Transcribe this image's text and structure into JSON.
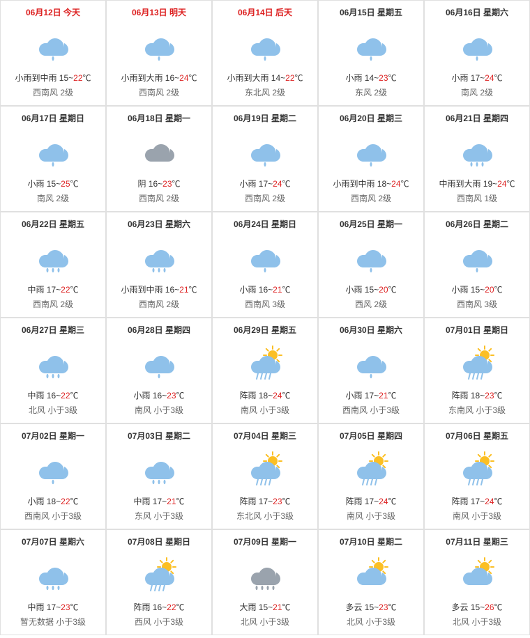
{
  "colors": {
    "cloud_blue": "#8fc1ea",
    "cloud_gray": "#9aa3ad",
    "sun": "#fbbf24",
    "highlight_red": "#d22222",
    "text_dark": "#333333",
    "text_muted": "#666666",
    "border": "#e0e0e0"
  },
  "days": [
    {
      "date": "06月12日",
      "dow": "今天",
      "hl": true,
      "icon": "light_rain",
      "cond": "小雨到中雨",
      "lo": "15",
      "hi": "22",
      "wind": "西南风 2级"
    },
    {
      "date": "06月13日",
      "dow": "明天",
      "hl": true,
      "icon": "light_rain",
      "cond": "小雨到大雨",
      "lo": "16",
      "hi": "24",
      "wind": "西南风 2级"
    },
    {
      "date": "06月14日",
      "dow": "后天",
      "hl": true,
      "icon": "light_rain",
      "cond": "小雨到大雨",
      "lo": "14",
      "hi": "22",
      "wind": "东北风 2级"
    },
    {
      "date": "06月15日",
      "dow": "星期五",
      "hl": false,
      "icon": "light_rain",
      "cond": "小雨",
      "lo": "14",
      "hi": "23",
      "wind": "东风 2级"
    },
    {
      "date": "06月16日",
      "dow": "星期六",
      "hl": false,
      "icon": "light_rain",
      "cond": "小雨",
      "lo": "17",
      "hi": "24",
      "wind": "南风 2级"
    },
    {
      "date": "06月17日",
      "dow": "星期日",
      "hl": false,
      "icon": "light_rain",
      "cond": "小雨",
      "lo": "15",
      "hi": "25",
      "wind": "南风 2级"
    },
    {
      "date": "06月18日",
      "dow": "星期一",
      "hl": false,
      "icon": "overcast",
      "cond": "阴",
      "lo": "16",
      "hi": "23",
      "wind": "西南风 2级"
    },
    {
      "date": "06月19日",
      "dow": "星期二",
      "hl": false,
      "icon": "light_rain",
      "cond": "小雨",
      "lo": "17",
      "hi": "24",
      "wind": "西南风 2级"
    },
    {
      "date": "06月20日",
      "dow": "星期三",
      "hl": false,
      "icon": "light_rain",
      "cond": "小雨到中雨",
      "lo": "18",
      "hi": "24",
      "wind": "西南风 2级"
    },
    {
      "date": "06月21日",
      "dow": "星期四",
      "hl": false,
      "icon": "moderate_rain",
      "cond": "中雨到大雨",
      "lo": "19",
      "hi": "24",
      "wind": "西南风 1级"
    },
    {
      "date": "06月22日",
      "dow": "星期五",
      "hl": false,
      "icon": "moderate_rain",
      "cond": "中雨",
      "lo": "17",
      "hi": "22",
      "wind": "西南风 2级"
    },
    {
      "date": "06月23日",
      "dow": "星期六",
      "hl": false,
      "icon": "moderate_rain",
      "cond": "小雨到中雨",
      "lo": "16",
      "hi": "21",
      "wind": "西南风 2级"
    },
    {
      "date": "06月24日",
      "dow": "星期日",
      "hl": false,
      "icon": "light_rain",
      "cond": "小雨",
      "lo": "16",
      "hi": "21",
      "wind": "西南风 3级"
    },
    {
      "date": "06月25日",
      "dow": "星期一",
      "hl": false,
      "icon": "light_rain",
      "cond": "小雨",
      "lo": "15",
      "hi": "20",
      "wind": "西风 2级"
    },
    {
      "date": "06月26日",
      "dow": "星期二",
      "hl": false,
      "icon": "light_rain",
      "cond": "小雨",
      "lo": "15",
      "hi": "20",
      "wind": "西南风 3级"
    },
    {
      "date": "06月27日",
      "dow": "星期三",
      "hl": false,
      "icon": "moderate_rain",
      "cond": "中雨",
      "lo": "16",
      "hi": "22",
      "wind": "北风 小于3级"
    },
    {
      "date": "06月28日",
      "dow": "星期四",
      "hl": false,
      "icon": "light_rain",
      "cond": "小雨",
      "lo": "16",
      "hi": "23",
      "wind": "南风 小于3级"
    },
    {
      "date": "06月29日",
      "dow": "星期五",
      "hl": false,
      "icon": "shower",
      "cond": "阵雨",
      "lo": "18",
      "hi": "24",
      "wind": "南风 小于3级"
    },
    {
      "date": "06月30日",
      "dow": "星期六",
      "hl": false,
      "icon": "light_rain",
      "cond": "小雨",
      "lo": "17",
      "hi": "21",
      "wind": "西南风 小于3级"
    },
    {
      "date": "07月01日",
      "dow": "星期日",
      "hl": false,
      "icon": "shower",
      "cond": "阵雨",
      "lo": "18",
      "hi": "23",
      "wind": "东南风 小于3级"
    },
    {
      "date": "07月02日",
      "dow": "星期一",
      "hl": false,
      "icon": "light_rain",
      "cond": "小雨",
      "lo": "18",
      "hi": "22",
      "wind": "西南风 小于3级"
    },
    {
      "date": "07月03日",
      "dow": "星期二",
      "hl": false,
      "icon": "moderate_rain",
      "cond": "中雨",
      "lo": "17",
      "hi": "21",
      "wind": "东风 小于3级"
    },
    {
      "date": "07月04日",
      "dow": "星期三",
      "hl": false,
      "icon": "shower",
      "cond": "阵雨",
      "lo": "17",
      "hi": "23",
      "wind": "东北风 小于3级"
    },
    {
      "date": "07月05日",
      "dow": "星期四",
      "hl": false,
      "icon": "shower",
      "cond": "阵雨",
      "lo": "17",
      "hi": "24",
      "wind": "南风 小于3级"
    },
    {
      "date": "07月06日",
      "dow": "星期五",
      "hl": false,
      "icon": "shower",
      "cond": "阵雨",
      "lo": "17",
      "hi": "24",
      "wind": "南风 小于3级"
    },
    {
      "date": "07月07日",
      "dow": "星期六",
      "hl": false,
      "icon": "moderate_rain",
      "cond": "中雨",
      "lo": "17",
      "hi": "23",
      "wind": "暂无数据 小于3级"
    },
    {
      "date": "07月08日",
      "dow": "星期日",
      "hl": false,
      "icon": "shower",
      "cond": "阵雨",
      "lo": "16",
      "hi": "22",
      "wind": "西风 小于3级"
    },
    {
      "date": "07月09日",
      "dow": "星期一",
      "hl": false,
      "icon": "heavy_rain",
      "cond": "大雨",
      "lo": "15",
      "hi": "21",
      "wind": "北风 小于3级"
    },
    {
      "date": "07月10日",
      "dow": "星期二",
      "hl": false,
      "icon": "partly_cloudy",
      "cond": "多云",
      "lo": "15",
      "hi": "23",
      "wind": "北风 小于3级"
    },
    {
      "date": "07月11日",
      "dow": "星期三",
      "hl": false,
      "icon": "partly_cloudy",
      "cond": "多云",
      "lo": "15",
      "hi": "26",
      "wind": "北风 小于3级"
    }
  ]
}
